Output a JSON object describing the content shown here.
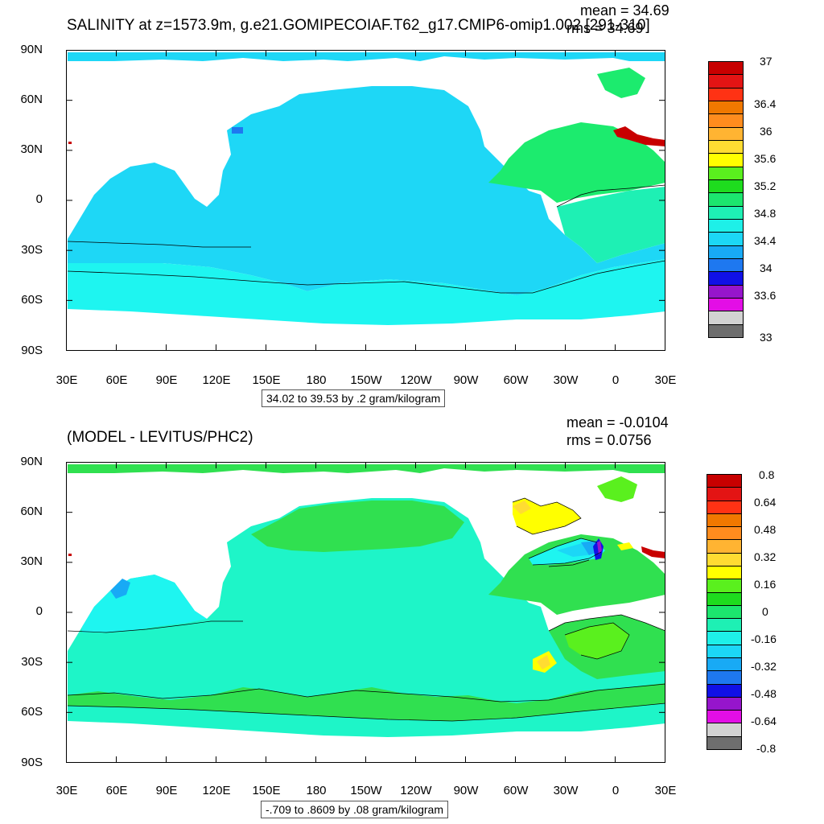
{
  "panels": [
    {
      "title": "SALINITY at z=1573.9m, g.e21.GOMIPECOIAF.T62_g17.CMIP6-omip1.002 [291-310]",
      "mean_label": "mean = 34.69",
      "rms_label": "rms = 34.69",
      "info": "34.02 to 39.53 by .2 gram/kilogram",
      "colorbar_labels": [
        "37",
        "36.4",
        "36",
        "35.6",
        "35.2",
        "34.8",
        "34.4",
        "34",
        "33.6",
        "33"
      ]
    },
    {
      "title": "(MODEL - LEVITUS/PHC2)",
      "mean_label": "mean = -0.0104",
      "rms_label": "rms = 0.0756",
      "info": "-.709 to .8609 by .08 gram/kilogram",
      "colorbar_labels": [
        "0.8",
        "0.64",
        "0.48",
        "0.32",
        "0.16",
        "0",
        "-0.16",
        "-0.32",
        "-0.48",
        "-0.64",
        "-0.8"
      ]
    }
  ],
  "axes": {
    "lat_labels": [
      "90N",
      "60N",
      "30N",
      "0",
      "30S",
      "60S",
      "90S"
    ],
    "lon_labels": [
      "30E",
      "60E",
      "90E",
      "120E",
      "150E",
      "180",
      "150W",
      "120W",
      "90W",
      "60W",
      "30W",
      "0",
      "30E"
    ]
  },
  "colors": {
    "scale": [
      "#6e6e6e",
      "#d2d2d2",
      "#e30ee6",
      "#9615cc",
      "#1010e6",
      "#1e78f0",
      "#18aaf5",
      "#1cd7f6",
      "#1ef0e8",
      "#1ef0b4",
      "#1ce66e",
      "#1edc1e",
      "#5af01e",
      "#ffff00",
      "#ffdc32",
      "#ffb432",
      "#ff8c1e",
      "#f07800",
      "#ff3214",
      "#e31414",
      "#c80000"
    ],
    "ocean_top_main": "#1ed7f6",
    "ocean_top_south": "#1ef5f0",
    "atlantic_top": "#1ceb6e",
    "ocean_bottom_main": "#1ef5c8",
    "ocean_bottom_green": "#30e050"
  },
  "chart_data": [
    {
      "type": "heatmap",
      "title": "SALINITY at z=1573.9m, g.e21.GOMIPECOIAF.T62_g17.CMIP6-omip1.002 [291-310]",
      "units": "gram/kilogram",
      "mean": 34.69,
      "rms": 34.69,
      "range": [
        34.02,
        39.53
      ],
      "contour_interval": 0.2,
      "colorbar_levels": [
        33,
        33.6,
        34,
        34.4,
        34.8,
        35.2,
        35.6,
        36,
        36.4,
        37
      ],
      "xlim": [
        30,
        390
      ],
      "ylim": [
        -90,
        90
      ]
    },
    {
      "type": "heatmap",
      "title": "(MODEL - LEVITUS/PHC2)",
      "units": "gram/kilogram",
      "mean": -0.0104,
      "rms": 0.0756,
      "range": [
        -0.709,
        0.8609
      ],
      "contour_interval": 0.08,
      "colorbar_levels": [
        -0.8,
        -0.64,
        -0.48,
        -0.32,
        -0.16,
        0,
        0.16,
        0.32,
        0.48,
        0.64,
        0.8
      ],
      "xlim": [
        30,
        390
      ],
      "ylim": [
        -90,
        90
      ]
    }
  ]
}
